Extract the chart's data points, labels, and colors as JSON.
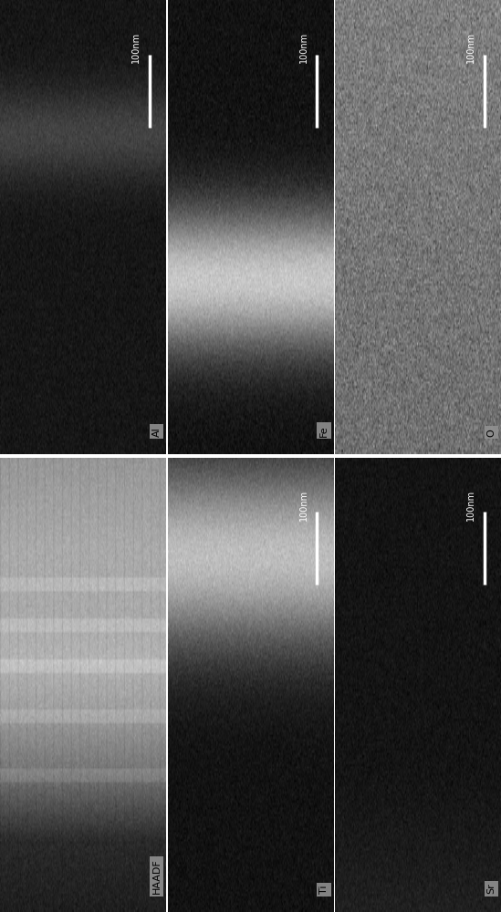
{
  "figure_width": 5.49,
  "figure_height": 10.0,
  "dpi": 100,
  "bg_color": "#ffffff",
  "panels": [
    {
      "col": 0,
      "row": 0,
      "label": "Al",
      "has_scalebar": true,
      "pattern": "al"
    },
    {
      "col": 1,
      "row": 0,
      "label": "Fe",
      "has_scalebar": true,
      "pattern": "fe"
    },
    {
      "col": 2,
      "row": 0,
      "label": "O",
      "has_scalebar": true,
      "pattern": "o"
    },
    {
      "col": 0,
      "row": 1,
      "label": "HAADF",
      "has_scalebar": false,
      "pattern": "haadf"
    },
    {
      "col": 1,
      "row": 1,
      "label": "Ti",
      "has_scalebar": true,
      "pattern": "ti"
    },
    {
      "col": 2,
      "row": 1,
      "label": "Sr",
      "has_scalebar": true,
      "pattern": "sr"
    }
  ]
}
